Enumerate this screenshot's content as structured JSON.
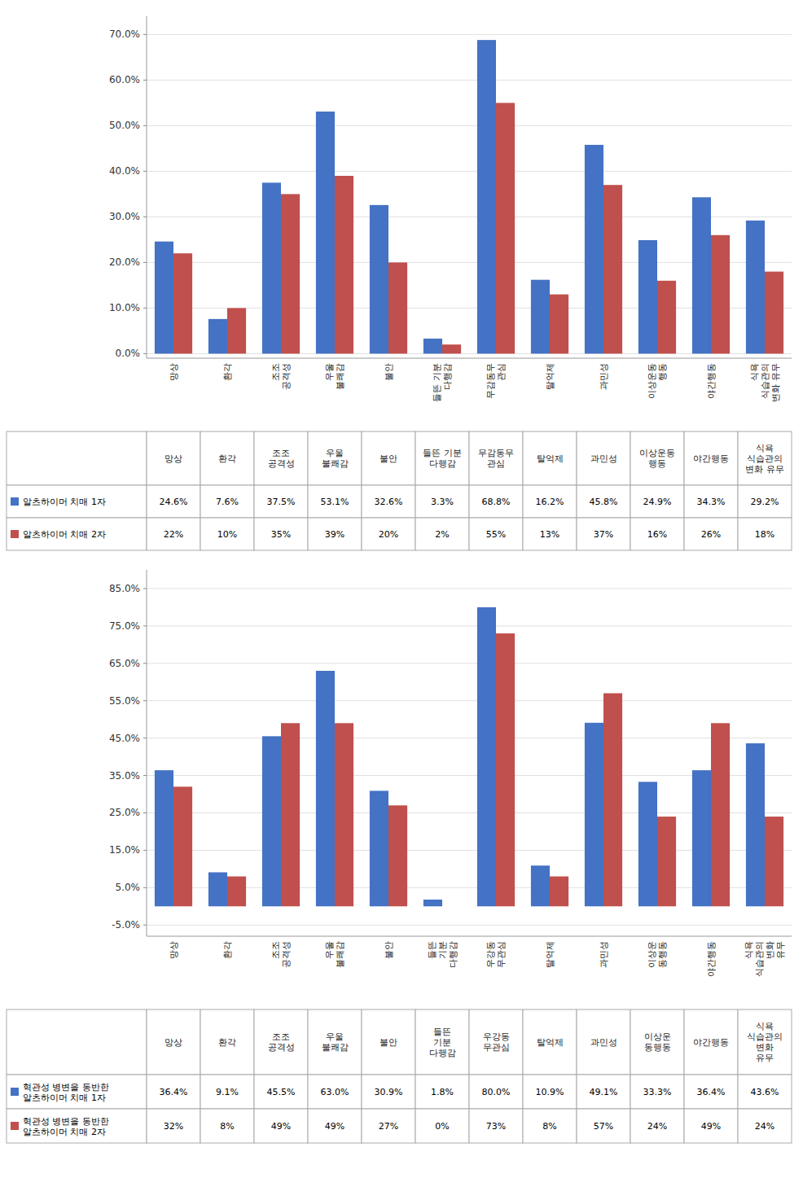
{
  "chart_data": [
    {
      "type": "bar",
      "categories": [
        "망상",
        "환각",
        "조조\n공격성",
        "우울\n불쾌감",
        "불안",
        "들뜬 기분\n다행감",
        "무감동무\n관심",
        "탈억제",
        "과민성",
        "이상운동\n행동",
        "야간행동",
        "식욕\n식습관의\n변화 유무"
      ],
      "series": [
        {
          "name": "알츠하이머 치매 1자",
          "color": "#4472C4",
          "values": [
            24.6,
            7.6,
            37.5,
            53.1,
            32.6,
            3.3,
            68.8,
            16.2,
            45.8,
            24.9,
            34.3,
            29.2
          ],
          "value_labels": [
            "24.6%",
            "7.6%",
            "37.5%",
            "53.1%",
            "32.6%",
            "3.3%",
            "68.8%",
            "16.2%",
            "45.8%",
            "24.9%",
            "34.3%",
            "29.2%"
          ]
        },
        {
          "name": "알츠하이머 치매 2자",
          "color": "#C0504D",
          "values": [
            22.0,
            10.0,
            35.0,
            39.0,
            20.0,
            2.0,
            55.0,
            13.0,
            37.0,
            16.0,
            26.0,
            18.0
          ],
          "value_labels": [
            "22%",
            "10%",
            "35%",
            "39%",
            "20%",
            "2%",
            "55%",
            "13%",
            "37%",
            "16%",
            "26%",
            "18%"
          ]
        }
      ],
      "ylim": [
        -1,
        74
      ],
      "yticks": [
        {
          "value": 0.0,
          "label": "0.0%"
        },
        {
          "value": 10.0,
          "label": "10.0%"
        },
        {
          "value": 20.0,
          "label": "20.0%"
        },
        {
          "value": 30.0,
          "label": "30.0%"
        },
        {
          "value": 40.0,
          "label": "40.0%"
        },
        {
          "value": 50.0,
          "label": "50.0%"
        },
        {
          "value": 60.0,
          "label": "60.0%"
        },
        {
          "value": 70.0,
          "label": "70.0%"
        }
      ],
      "grid": true
    },
    {
      "type": "bar",
      "categories": [
        "망상",
        "환각",
        "조조\n공격성",
        "우울\n불쾌감",
        "불안",
        "들뜬\n기분\n다행감",
        "우강동\n무관심",
        "탈억제",
        "과민성",
        "이상운\n동행동",
        "야간행동",
        "식욕\n식습관의\n변화\n유무"
      ],
      "series": [
        {
          "name": "혁관성 병변을 동반한\n알츠하이머 치매 1자",
          "color": "#4472C4",
          "values": [
            36.4,
            9.1,
            45.5,
            63.0,
            30.9,
            1.8,
            80.0,
            10.9,
            49.1,
            33.3,
            36.4,
            43.6
          ],
          "value_labels": [
            "36.4%",
            "9.1%",
            "45.5%",
            "63.0%",
            "30.9%",
            "1.8%",
            "80.0%",
            "10.9%",
            "49.1%",
            "33.3%",
            "36.4%",
            "43.6%"
          ]
        },
        {
          "name": "혁관성 병변을 동반한\n알츠하이머 치매 2자",
          "color": "#C0504D",
          "values": [
            32.0,
            8.0,
            49.0,
            49.0,
            27.0,
            0.0,
            73.0,
            8.0,
            57.0,
            24.0,
            49.0,
            24.0
          ],
          "value_labels": [
            "32%",
            "8%",
            "49%",
            "49%",
            "27%",
            "0%",
            "73%",
            "8%",
            "57%",
            "24%",
            "49%",
            "24%"
          ]
        }
      ],
      "ylim": [
        -8,
        90
      ],
      "yticks": [
        {
          "value": -5.0,
          "label": "-5.0%"
        },
        {
          "value": 5.0,
          "label": "5.0%"
        },
        {
          "value": 15.0,
          "label": "15.0%"
        },
        {
          "value": 25.0,
          "label": "25.0%"
        },
        {
          "value": 35.0,
          "label": "35.0%"
        },
        {
          "value": 45.0,
          "label": "45.0%"
        },
        {
          "value": 55.0,
          "label": "55.0%"
        },
        {
          "value": 65.0,
          "label": "65.0%"
        },
        {
          "value": 75.0,
          "label": "75.0%"
        },
        {
          "value": 85.0,
          "label": "85.0%"
        }
      ],
      "grid": true
    }
  ]
}
